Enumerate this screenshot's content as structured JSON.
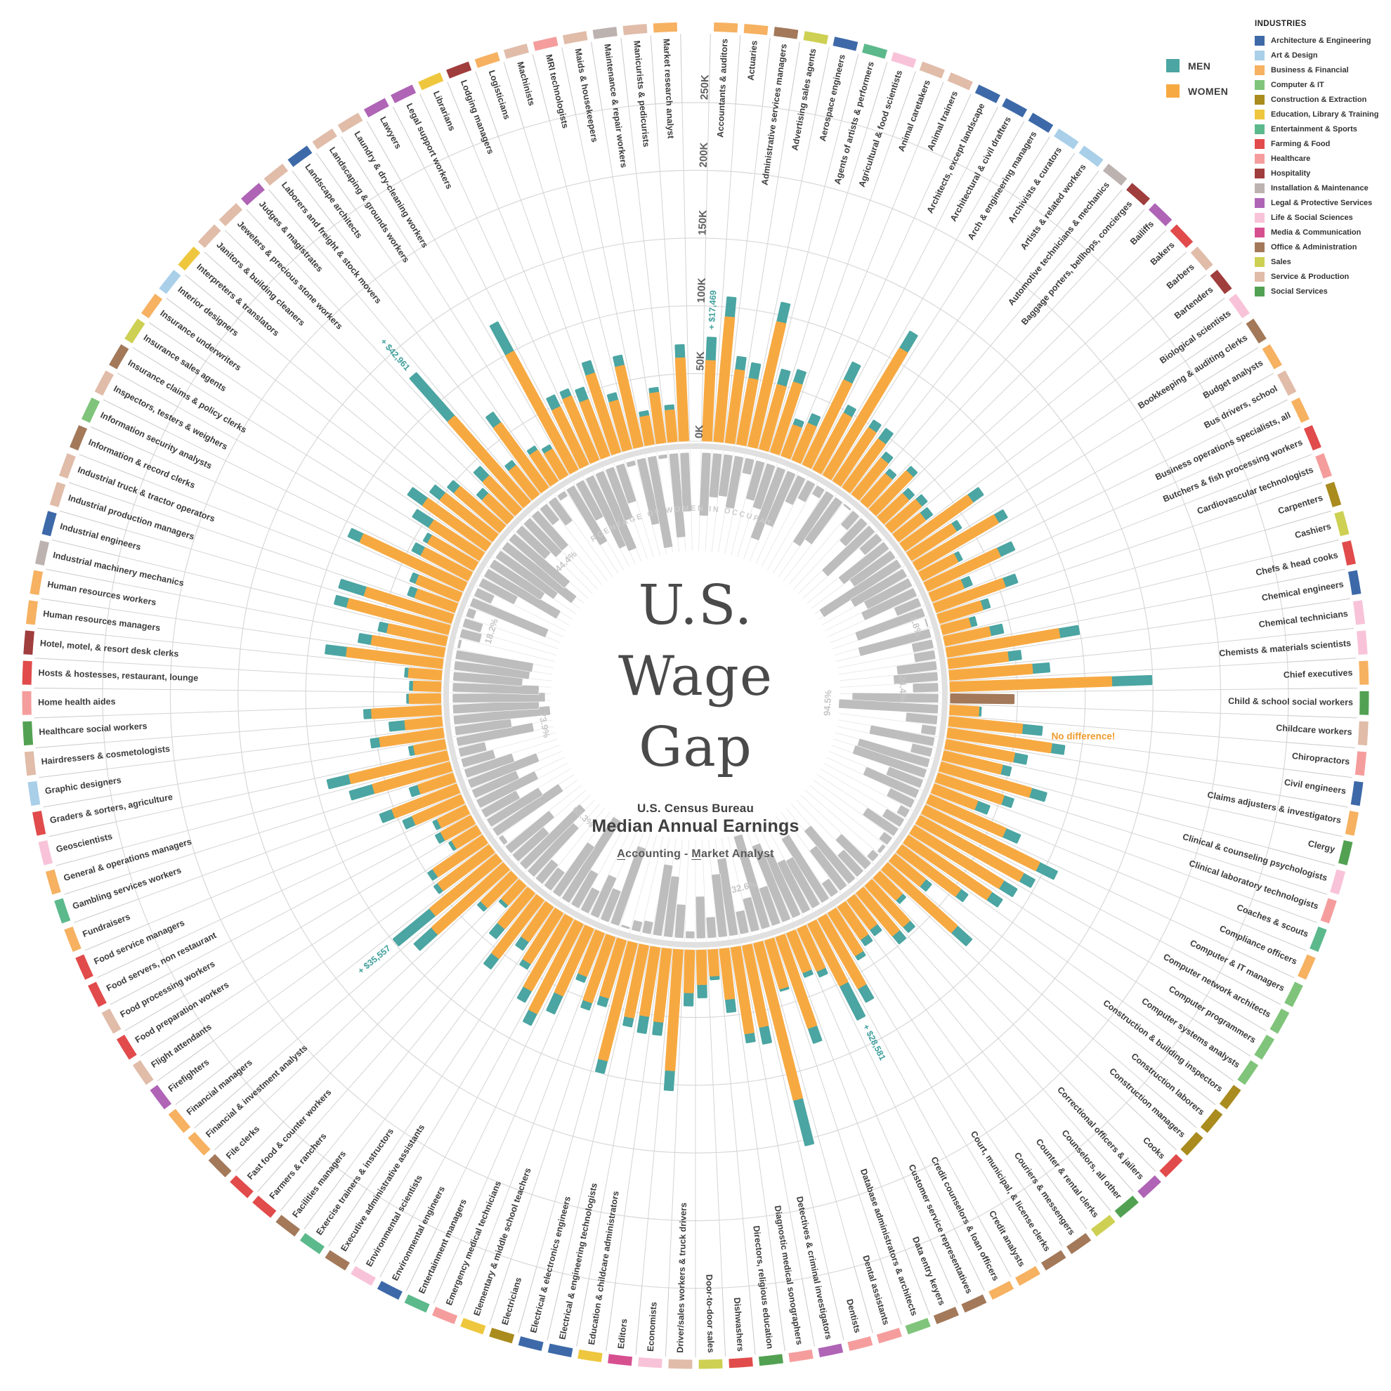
{
  "title": {
    "line1": "U.S.",
    "line2": "Wage",
    "line3": "Gap"
  },
  "center": {
    "source": "U.S. Census Bureau",
    "subtitle": "Median Annual Earnings",
    "range_a": "A",
    "range_a_rest": "ccounting",
    "range_sep": " - ",
    "range_m": "M",
    "range_m_rest": "arket Analyst"
  },
  "legend": {
    "men_label": "MEN",
    "women_label": "WOMEN",
    "men_color": "#4ba5a2",
    "women_color": "#f7a941"
  },
  "industries_legend": {
    "title": "INDUSTRIES",
    "items": [
      {
        "label": "Architecture & Engineering",
        "color": "#3d69a8"
      },
      {
        "label": "Art & Design",
        "color": "#a9cfe9"
      },
      {
        "label": "Business & Financial",
        "color": "#f6b161"
      },
      {
        "label": "Computer & IT",
        "color": "#7fc47a"
      },
      {
        "label": "Construction & Extraction",
        "color": "#a98b1e"
      },
      {
        "label": "Education, Library & Training",
        "color": "#eec73e"
      },
      {
        "label": "Entertainment & Sports",
        "color": "#5cb98c"
      },
      {
        "label": "Farming & Food",
        "color": "#e14b4b"
      },
      {
        "label": "Healthcare",
        "color": "#f59d9d"
      },
      {
        "label": "Hospitality",
        "color": "#a03d3d"
      },
      {
        "label": "Installation & Maintenance",
        "color": "#bcb2af"
      },
      {
        "label": "Legal & Protective Services",
        "color": "#af64b6"
      },
      {
        "label": "Life & Social Sciences",
        "color": "#f8c3d8"
      },
      {
        "label": "Media & Communication",
        "color": "#d65090"
      },
      {
        "label": "Office & Administration",
        "color": "#a3795a"
      },
      {
        "label": "Sales",
        "color": "#cdd052"
      },
      {
        "label": "Service & Production",
        "color": "#e0bca9"
      },
      {
        "label": "Social Services",
        "color": "#52a152"
      }
    ]
  },
  "inner_ring_label": "PERCENTAGE OF WOMEN IN OCCUPATION",
  "annotations": [
    {
      "occupation": "Accountants & auditors",
      "text": "+ $17,469",
      "type": "men_gap"
    },
    {
      "occupation": "Judges & magistrates",
      "text": "+ $42,961",
      "type": "men_gap"
    },
    {
      "occupation": "Financial managers",
      "text": "+ $35,557",
      "type": "men_gap"
    },
    {
      "occupation": "Credit counselors & loan officers",
      "text": "+ $28,581",
      "type": "men_gap"
    },
    {
      "occupation": "Child & school social workers",
      "text": "No difference!",
      "type": "no_difference"
    }
  ],
  "highlighted_percentages": [
    {
      "occupation": "Carpenters",
      "text": "1.8%"
    },
    {
      "occupation": "Chief executives",
      "text": "24.4%"
    },
    {
      "occupation": "Childcare workers",
      "text": "94.5%"
    },
    {
      "occupation": "Dentists",
      "text": "32.6%"
    },
    {
      "occupation": "Fast food & counter workers",
      "text": "63.3%"
    },
    {
      "occupation": "Graders & sorters, agriculture",
      "text": "73.9%"
    },
    {
      "occupation": "Industrial production managers",
      "text": "18.2%"
    },
    {
      "occupation": "Jewelers & precious stone workers",
      "text": "44.4%"
    }
  ],
  "chart_data": {
    "type": "radial-bar",
    "title": "U.S. Wage Gap",
    "axis_ticks": [
      "0K",
      "50K",
      "100K",
      "150K",
      "200K",
      "250K"
    ],
    "axis_max_k": 250,
    "note": "industry is an index into industries_legend.items; earnings in $K; pct_women of inner gray ring",
    "columns": [
      "occupation",
      "industry",
      "women_median_k",
      "men_median_k",
      "pct_women"
    ],
    "rows": [
      [
        "Accountants & auditors",
        2,
        60,
        77.47,
        60
      ],
      [
        "Actuaries",
        2,
        93,
        108,
        42
      ],
      [
        "Administrative services managers",
        14,
        55,
        65,
        40
      ],
      [
        "Advertising sales agents",
        15,
        50,
        62,
        50
      ],
      [
        "Aerospace engineers",
        0,
        95,
        110,
        15
      ],
      [
        "Agents of artists & performers",
        6,
        50,
        62,
        38
      ],
      [
        "Agricultural & food scientists",
        12,
        55,
        65,
        44
      ],
      [
        "Animal caretakers",
        16,
        25,
        30,
        72
      ],
      [
        "Animal trainers",
        16,
        30,
        38,
        55
      ],
      [
        "Architects, except landscape",
        0,
        70,
        85,
        28
      ],
      [
        "Architectural & civil drafters",
        0,
        48,
        55,
        20
      ],
      [
        "Arch & engineering managers",
        0,
        110,
        125,
        10
      ],
      [
        "Archivists & curators",
        1,
        48,
        55,
        58
      ],
      [
        "Artists & related workers",
        1,
        45,
        55,
        50
      ],
      [
        "Automotive technicians & mechanics",
        10,
        35,
        41,
        2.3
      ],
      [
        "Baggage porters, bellhops, concierges",
        9,
        28,
        33,
        18
      ],
      [
        "Bailiffs",
        11,
        40,
        45,
        30
      ],
      [
        "Bakers",
        7,
        26,
        32,
        62
      ],
      [
        "Barbers",
        16,
        30,
        36,
        22
      ],
      [
        "Bartenders",
        9,
        26,
        33,
        55
      ],
      [
        "Biological scientists",
        12,
        62,
        72,
        48
      ],
      [
        "Bookkeeping & auditing clerks",
        14,
        40,
        45,
        88
      ],
      [
        "Budget analysts",
        2,
        70,
        78,
        58
      ],
      [
        "Bus drivers, school",
        16,
        30,
        34,
        48
      ],
      [
        "Business operations specialists, all",
        2,
        60,
        72,
        55
      ],
      [
        "Butchers & fish processing workers",
        7,
        26,
        33,
        25
      ],
      [
        "Cardiovascular technologists",
        8,
        55,
        65,
        68
      ],
      [
        "Carpenters",
        4,
        34,
        40,
        1.8
      ],
      [
        "Cashiers",
        15,
        22,
        27,
        70
      ],
      [
        "Chefs & head cooks",
        7,
        35,
        45,
        20
      ],
      [
        "Chemical engineers",
        0,
        85,
        100,
        20
      ],
      [
        "Chemical technicians",
        12,
        45,
        55,
        38
      ],
      [
        "Chemists & materials scientists",
        12,
        62,
        75,
        42
      ],
      [
        "Chief executives",
        2,
        120,
        150,
        24.4
      ],
      [
        "Child & school social workers",
        17,
        48,
        48,
        82
      ],
      [
        "Childcare workers",
        16,
        22,
        24,
        94.5
      ],
      [
        "Chiropractors",
        8,
        55,
        70,
        30
      ],
      [
        "Civil engineers",
        0,
        78,
        88,
        14
      ],
      [
        "Claims adjusters & investigators",
        2,
        52,
        62,
        62
      ],
      [
        "Clergy",
        17,
        45,
        52,
        20
      ],
      [
        "Clinical & counseling psychologists",
        12,
        70,
        82,
        70
      ],
      [
        "Clinical laboratory technologists",
        8,
        52,
        60,
        72
      ],
      [
        "Coaches & scouts",
        6,
        35,
        45,
        35
      ],
      [
        "Compliance officers",
        2,
        62,
        74,
        55
      ],
      [
        "Computer & IT managers",
        3,
        95,
        110,
        26
      ],
      [
        "Computer network architects",
        3,
        88,
        98,
        10
      ],
      [
        "Computer programmers",
        3,
        78,
        90,
        20
      ],
      [
        "Computer systems analysts",
        3,
        75,
        85,
        36
      ],
      [
        "Construction & building inspectors",
        4,
        55,
        62,
        10
      ],
      [
        "Construction laborers",
        4,
        30,
        36,
        4
      ],
      [
        "Construction managers",
        4,
        70,
        85,
        8
      ],
      [
        "Cooks",
        7,
        24,
        28,
        40
      ],
      [
        "Correctional officers & jailers",
        11,
        42,
        48,
        28
      ],
      [
        "Counselors, all other",
        17,
        42,
        50,
        66
      ],
      [
        "Counter & rental clerks",
        15,
        28,
        34,
        48
      ],
      [
        "Couriers & messengers",
        14,
        30,
        36,
        16
      ],
      [
        "Court, municipal, & license clerks",
        14,
        38,
        42,
        72
      ],
      [
        "Credit analysts",
        2,
        60,
        72,
        52
      ],
      [
        "Credit counselors & loan officers",
        2,
        52,
        80.58,
        54
      ],
      [
        "Customer service representatives",
        14,
        35,
        40,
        65
      ],
      [
        "Data entry keyers",
        14,
        32,
        36,
        78
      ],
      [
        "Database administrators & architects",
        3,
        72,
        84,
        38
      ],
      [
        "Dental assistants",
        8,
        38,
        40,
        92
      ],
      [
        "Dentists",
        8,
        120,
        155,
        32.6
      ],
      [
        "Detectives & criminal investigators",
        11,
        62,
        75,
        22
      ],
      [
        "Diagnostic medical sonographers",
        8,
        65,
        72,
        74
      ],
      [
        "Directors, religious education",
        17,
        38,
        48,
        60
      ],
      [
        "Dishwashers",
        7,
        20,
        23,
        20
      ],
      [
        "Door-to-door sales",
        15,
        26,
        36,
        40
      ],
      [
        "Driver/sales workers & truck drivers",
        16,
        32,
        42,
        7
      ],
      [
        "Economists",
        12,
        90,
        105,
        32
      ],
      [
        "Editors",
        13,
        55,
        65,
        58
      ],
      [
        "Education & childcare administrators",
        5,
        52,
        65,
        68
      ],
      [
        "Electrical & engineering technologists",
        0,
        55,
        62,
        12
      ],
      [
        "Electrical & electronics engineers",
        0,
        90,
        100,
        10
      ],
      [
        "Electricians",
        4,
        45,
        52,
        2.5
      ],
      [
        "Elementary & middle school teachers",
        5,
        52,
        58,
        78
      ],
      [
        "Emergency medical technicians",
        8,
        35,
        40,
        32
      ],
      [
        "Entertainment managers",
        6,
        55,
        70,
        42
      ],
      [
        "Environmental engineers",
        0,
        75,
        85,
        24
      ],
      [
        "Environmental scientists",
        12,
        62,
        72,
        38
      ],
      [
        "Executive administrative assistants",
        14,
        45,
        50,
        92
      ],
      [
        "Exercise trainers & instructors",
        6,
        32,
        40,
        58
      ],
      [
        "Facilities managers",
        14,
        55,
        65,
        22
      ],
      [
        "Farmers & ranchers",
        7,
        35,
        45,
        24
      ],
      [
        "Fast food & counter workers",
        7,
        20,
        23,
        63.3
      ],
      [
        "File clerks",
        14,
        32,
        36,
        80
      ],
      [
        "Financial & investment analysts",
        2,
        72,
        90,
        40
      ],
      [
        "Financial managers",
        2,
        64,
        99.56,
        54
      ],
      [
        "Firefighters",
        11,
        48,
        52,
        5
      ],
      [
        "Flight attendants",
        16,
        45,
        50,
        76
      ],
      [
        "Food preparation workers",
        7,
        22,
        25,
        58
      ],
      [
        "Food processing workers",
        16,
        26,
        31,
        38
      ],
      [
        "Food servers, non restaurant",
        7,
        24,
        28,
        62
      ],
      [
        "Food service managers",
        7,
        40,
        48,
        46
      ],
      [
        "Fundraisers",
        2,
        52,
        62,
        70
      ],
      [
        "Gambling services workers",
        6,
        28,
        35,
        48
      ],
      [
        "General & operations managers",
        2,
        60,
        78,
        32
      ],
      [
        "Geoscientists",
        12,
        75,
        92,
        26
      ],
      [
        "Graders & sorters, agriculture",
        7,
        24,
        28,
        73.9
      ],
      [
        "Graphic designers",
        1,
        48,
        55,
        54
      ],
      [
        "Hairdressers & cosmetologists",
        16,
        28,
        40,
        92
      ],
      [
        "Healthcare social workers",
        17,
        52,
        58,
        82
      ],
      [
        "Home health aides",
        8,
        24,
        26,
        88
      ],
      [
        "Hosts & hostesses, restaurant, lounge",
        7,
        21,
        24,
        82
      ],
      [
        "Hotel, motel, & resort desk clerks",
        9,
        25,
        28,
        66
      ],
      [
        "Human resources managers",
        2,
        72,
        88,
        72
      ],
      [
        "Human resources workers",
        2,
        55,
        65,
        74
      ],
      [
        "Industrial machinery mechanics",
        10,
        45,
        52,
        3
      ],
      [
        "Industrial engineers",
        0,
        78,
        88,
        20
      ],
      [
        "Industrial production managers",
        16,
        68,
        88,
        18.2
      ],
      [
        "Industrial truck & tractor operators",
        16,
        32,
        38,
        8
      ],
      [
        "Information & record clerks",
        14,
        35,
        40,
        78
      ],
      [
        "Information security analysts",
        3,
        85,
        95,
        18
      ],
      [
        "Inspectors, testers & weighers",
        16,
        40,
        48,
        38
      ],
      [
        "Insurance claims & policy clerks",
        14,
        40,
        44,
        80
      ],
      [
        "Insurance sales agents",
        15,
        45,
        60,
        58
      ],
      [
        "Insurance underwriters",
        2,
        58,
        72,
        68
      ],
      [
        "Interior designers",
        1,
        50,
        60,
        84
      ],
      [
        "Interpreters & translators",
        5,
        45,
        52,
        70
      ],
      [
        "Janitors & building cleaners",
        16,
        26,
        32,
        38
      ],
      [
        "Jewelers & precious stone workers",
        16,
        35,
        45,
        44.4
      ],
      [
        "Judges & magistrates",
        11,
        85,
        127.96,
        44
      ],
      [
        "Laborers and freight & stock movers",
        16,
        28,
        33,
        20
      ],
      [
        "Landscape architects",
        0,
        60,
        70,
        28
      ],
      [
        "Landscaping & grounds workers",
        16,
        28,
        32,
        6
      ],
      [
        "Laundry & dry-cleaning workers",
        16,
        23,
        27,
        62
      ],
      [
        "Lawyers",
        11,
        100,
        125,
        40
      ],
      [
        "Legal support workers",
        11,
        48,
        58,
        74
      ],
      [
        "Librarians",
        5,
        52,
        58,
        80
      ],
      [
        "Lodging managers",
        9,
        45,
        55,
        52
      ],
      [
        "Logisticians",
        2,
        62,
        72,
        38
      ],
      [
        "Machinists",
        16,
        38,
        44,
        5
      ],
      [
        "MRI technologists",
        8,
        62,
        70,
        64
      ],
      [
        "Maids & housekeepers",
        16,
        22,
        26,
        88
      ],
      [
        "Maintenance & repair workers",
        10,
        38,
        42,
        4
      ],
      [
        "Manicurists & pedicurists",
        16,
        24,
        28,
        80
      ],
      [
        "Market research analyst",
        2,
        62,
        72,
        56
      ]
    ]
  },
  "colors": {
    "gray_bar": "#bdbdbd",
    "grid": "#d8d8d8",
    "baseline_ring": "#e0e0e0",
    "annotation_teal": "#3f9f9c",
    "annotation_orange": "#ef9b2d",
    "no_difference_bar": "#a3795a",
    "label_text": "#3c3c3c",
    "tick_text": "#606060",
    "pct_label": "#c6c6c6",
    "inner_ring_text": "#cccccc"
  }
}
